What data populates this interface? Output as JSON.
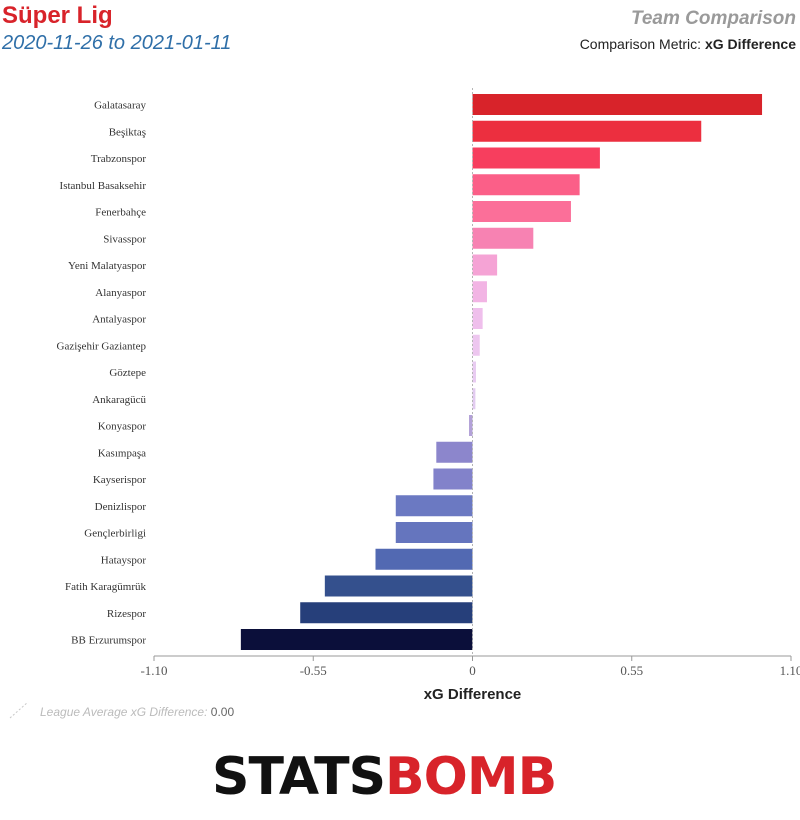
{
  "header": {
    "league": "Süper Lig",
    "date_range": "2020-11-26 to 2021-01-11",
    "title": "Team Comparison",
    "metric_label": "Comparison Metric:",
    "metric_value": "xG Difference"
  },
  "chart_data": {
    "type": "bar",
    "orientation": "horizontal",
    "xlabel": "xG Difference",
    "xlim": [
      -1.1,
      1.1
    ],
    "xticks": [
      "-1.10",
      "-0.55",
      "0",
      "0.55",
      "1.10"
    ],
    "xtick_values": [
      -1.1,
      -0.55,
      0,
      0.55,
      1.1
    ],
    "categories": [
      "Galatasaray",
      "Beşiktaş",
      "Trabzonspor",
      "Istanbul Basaksehir",
      "Fenerbahçe",
      "Sivasspor",
      "Yeni Malatyaspor",
      "Alanyaspor",
      "Antalyaspor",
      "Gazişehir Gaziantep",
      "Göztepe",
      "Ankaragücü",
      "Konyaspor",
      "Kasımpaşa",
      "Kayserispor",
      "Denizlispor",
      "Gençlerbirligi",
      "Hatayspor",
      "Fatih Karagümrük",
      "Rizespor",
      "BB Erzurumspor"
    ],
    "values": [
      1.0,
      0.79,
      0.44,
      0.37,
      0.34,
      0.21,
      0.085,
      0.05,
      0.035,
      0.025,
      0.012,
      0.01,
      -0.012,
      -0.125,
      -0.135,
      -0.265,
      -0.265,
      -0.335,
      -0.51,
      -0.595,
      -0.8
    ],
    "colors": [
      "#d8232a",
      "#ec2f3f",
      "#f73e5e",
      "#fb5f88",
      "#fb6f99",
      "#f782b2",
      "#f5a3d5",
      "#f2b4e4",
      "#efbfec",
      "#edc6ef",
      "#e8cbf1",
      "#e2cbf0",
      "#b3a1d8",
      "#8c86cc",
      "#8282ca",
      "#6b79c2",
      "#6575be",
      "#5269b2",
      "#34508d",
      "#263f7a",
      "#0b0f3a"
    ],
    "reference_line": {
      "label": "League Average xG Difference:",
      "value": "0.00"
    },
    "grid": false
  },
  "footer": {
    "logo_left": "STATS",
    "logo_right": "BOMB"
  }
}
